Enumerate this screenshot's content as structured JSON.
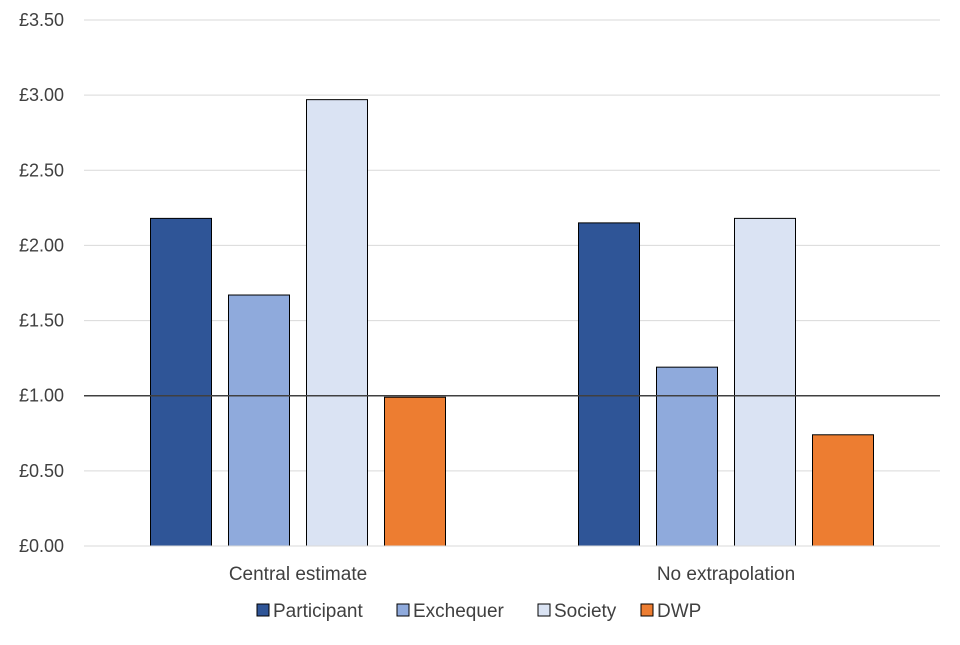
{
  "chart_data": {
    "type": "bar",
    "categories": [
      "Central estimate",
      "No extrapolation"
    ],
    "series": [
      {
        "name": "Participant",
        "values": [
          2.18,
          2.15
        ],
        "color": "#2F5597"
      },
      {
        "name": "Exchequer",
        "values": [
          1.67,
          1.19
        ],
        "color": "#8FAADC"
      },
      {
        "name": "Society",
        "values": [
          2.97,
          2.18
        ],
        "color": "#DAE3F3"
      },
      {
        "name": "DWP",
        "values": [
          0.99,
          0.74
        ],
        "color": "#ED7D31"
      }
    ],
    "title": "",
    "xlabel": "",
    "ylabel": "",
    "ylim": [
      0,
      3.5
    ],
    "yticks": [
      "£0.00",
      "£0.50",
      "£1.00",
      "£1.50",
      "£2.00",
      "£2.50",
      "£3.00",
      "£3.50"
    ],
    "reference_line": 1.0,
    "grid": true,
    "legend_position": "bottom"
  }
}
